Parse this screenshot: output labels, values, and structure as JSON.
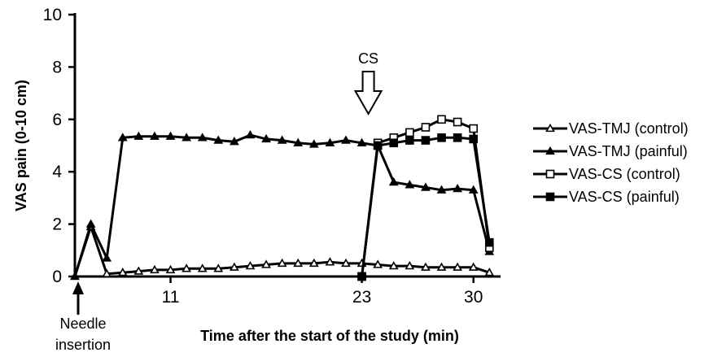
{
  "chart_data": {
    "type": "line",
    "xlabel": "Time after the start of the study (min)",
    "ylabel": "VAS pain (0-10 cm)",
    "ylim": [
      0,
      10
    ],
    "xlim": [
      5,
      31.7
    ],
    "y_ticks": [
      "0",
      "2",
      "4",
      "6",
      "8",
      "10"
    ],
    "x_ticks": [
      {
        "value": 11,
        "label": "11"
      },
      {
        "value": 23,
        "label": "23"
      },
      {
        "value": 30,
        "label": "30"
      }
    ],
    "grid": false,
    "legend_position": "right",
    "annotations": {
      "cs_label": "CS",
      "cs_x": 23,
      "needle_label_line1": "Needle",
      "needle_label_line2": "insertion",
      "needle_x": 5
    },
    "series": [
      {
        "name": "VAS-TMJ (control)",
        "marker": "triangle-open",
        "x": [
          5,
          6,
          7,
          8,
          9,
          10,
          11,
          12,
          13,
          14,
          15,
          16,
          17,
          18,
          19,
          20,
          21,
          22,
          23,
          24,
          25,
          26,
          27,
          28,
          29,
          30,
          31
        ],
        "y": [
          0,
          1.9,
          0.1,
          0.15,
          0.2,
          0.25,
          0.25,
          0.3,
          0.3,
          0.3,
          0.35,
          0.4,
          0.45,
          0.5,
          0.5,
          0.5,
          0.55,
          0.5,
          0.5,
          0.45,
          0.4,
          0.4,
          0.35,
          0.35,
          0.35,
          0.35,
          0.15
        ]
      },
      {
        "name": "VAS-TMJ (painful)",
        "marker": "triangle-filled",
        "x": [
          5,
          6,
          7,
          8,
          9,
          10,
          11,
          12,
          13,
          14,
          15,
          16,
          17,
          18,
          19,
          20,
          21,
          22,
          23,
          24,
          25,
          26,
          27,
          28,
          29,
          30,
          31
        ],
        "y": [
          0,
          2.0,
          0.7,
          5.3,
          5.35,
          5.35,
          5.35,
          5.3,
          5.3,
          5.2,
          5.15,
          5.4,
          5.25,
          5.2,
          5.1,
          5.05,
          5.1,
          5.2,
          5.1,
          5.0,
          3.6,
          3.5,
          3.4,
          3.3,
          3.35,
          3.3,
          0.95
        ]
      },
      {
        "name": "VAS-CS (control)",
        "marker": "square-open",
        "x": [
          23,
          24,
          25,
          26,
          27,
          28,
          29,
          30,
          31
        ],
        "y": [
          0,
          5.1,
          5.3,
          5.5,
          5.7,
          6.0,
          5.9,
          5.65,
          1.1
        ]
      },
      {
        "name": "VAS-CS (painful)",
        "marker": "square-filled",
        "x": [
          23,
          24,
          25,
          26,
          27,
          28,
          29,
          30,
          31
        ],
        "y": [
          0,
          5.0,
          5.1,
          5.2,
          5.2,
          5.3,
          5.3,
          5.25,
          1.3
        ]
      }
    ]
  }
}
